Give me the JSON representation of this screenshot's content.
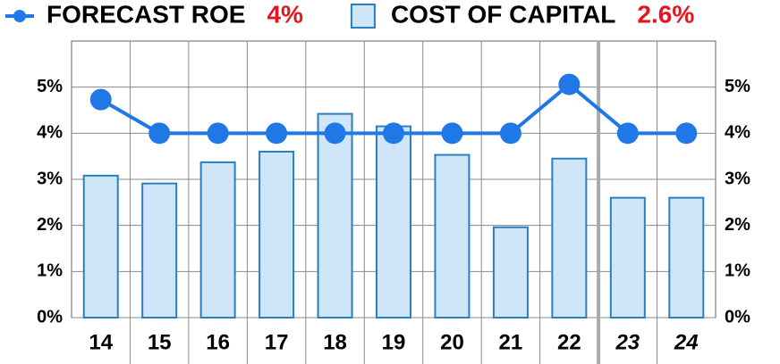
{
  "chart_data": {
    "type": "bar_line",
    "categories": [
      "14",
      "15",
      "16",
      "17",
      "18",
      "19",
      "20",
      "21",
      "22",
      "23",
      "24"
    ],
    "italic_categories": [
      9,
      10
    ],
    "series": [
      {
        "name": "FORECAST ROE",
        "legend_value": "4%",
        "type": "line",
        "color": "#1f78e6",
        "values": [
          4.73,
          4.0,
          4.0,
          4.0,
          4.0,
          4.0,
          4.0,
          4.0,
          5.06,
          4.0,
          4.0
        ]
      },
      {
        "name": "COST OF CAPITAL",
        "legend_value": "2.6%",
        "type": "bar",
        "color": "#cfe5f8",
        "edge": "#2a7fc0",
        "values": [
          3.08,
          2.91,
          3.37,
          3.6,
          4.42,
          4.15,
          3.53,
          1.96,
          3.45,
          2.6,
          2.6
        ]
      }
    ],
    "ylim": [
      0,
      6
    ],
    "yticks": [
      {
        "value": 0,
        "label": "0%"
      },
      {
        "value": 1,
        "label": "1%"
      },
      {
        "value": 2,
        "label": "2%"
      },
      {
        "value": 3,
        "label": "3%"
      },
      {
        "value": 4,
        "label": "4%"
      },
      {
        "value": 5,
        "label": "5%"
      }
    ],
    "grid": true
  }
}
